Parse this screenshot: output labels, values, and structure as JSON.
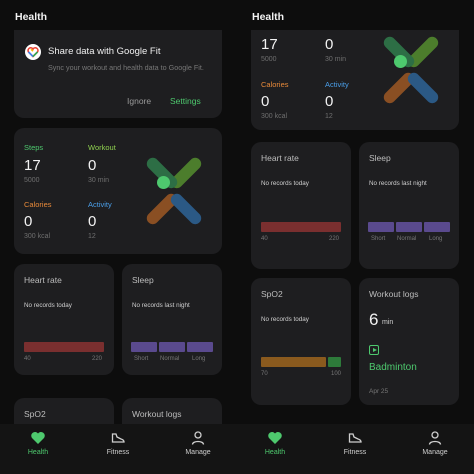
{
  "left": {
    "header": {
      "title": "Health"
    },
    "google_fit": {
      "title": "Share data with Google Fit",
      "description": "Sync your workout and health data to Google Fit.",
      "ignore_label": "Ignore",
      "settings_label": "Settings"
    },
    "metrics": {
      "steps": {
        "label": "Steps",
        "value": "17",
        "goal": "5000"
      },
      "workout": {
        "label": "Workout",
        "value": "0",
        "goal": "30 min"
      },
      "calories": {
        "label": "Calories",
        "value": "0",
        "goal": "300 kcal"
      },
      "activity": {
        "label": "Activity",
        "value": "0",
        "goal": "12"
      }
    },
    "heart_rate": {
      "title": "Heart rate",
      "note": "No records today",
      "min": "40",
      "max": "220"
    },
    "sleep": {
      "title": "Sleep",
      "note": "No records last night",
      "labels": [
        "Short",
        "Normal",
        "Long"
      ]
    },
    "spo2": {
      "title": "SpO2"
    },
    "workout_logs": {
      "title": "Workout logs"
    }
  },
  "right": {
    "header": {
      "title": "Health"
    },
    "metrics": {
      "steps": {
        "value": "17",
        "goal": "5000"
      },
      "workout": {
        "value": "0",
        "goal": "30 min"
      },
      "calories": {
        "label": "Calories",
        "value": "0",
        "goal": "300 kcal"
      },
      "activity": {
        "label": "Activity",
        "value": "0",
        "goal": "12"
      }
    },
    "heart_rate": {
      "title": "Heart rate",
      "note": "No records today",
      "min": "40",
      "max": "220"
    },
    "sleep": {
      "title": "Sleep",
      "note": "No records last night",
      "labels": [
        "Short",
        "Normal",
        "Long"
      ]
    },
    "spo2": {
      "title": "SpO2",
      "note": "No records today",
      "min": "70",
      "max": "100"
    },
    "workout_logs": {
      "title": "Workout logs",
      "value": "6",
      "unit": "min",
      "activity": "Badminton",
      "date": "Apr 25"
    }
  },
  "nav": {
    "items": [
      {
        "label": "Health",
        "icon": "heart-icon",
        "active": true
      },
      {
        "label": "Fitness",
        "icon": "shoe-icon",
        "active": false
      },
      {
        "label": "Manage",
        "icon": "person-icon",
        "active": false
      }
    ]
  },
  "colors": {
    "accent_green": "#4ec96e",
    "workout_green": "#8fd14f",
    "calories_orange": "#e88a3a",
    "activity_blue": "#4a9ee8",
    "heart_rate_bar": "#7a2f2f",
    "sleep_bar": "#5a4a8e",
    "spo2_bar": "#8a5a1e",
    "card_bg": "#1e1e20",
    "page_bg": "#0d0d0d"
  }
}
